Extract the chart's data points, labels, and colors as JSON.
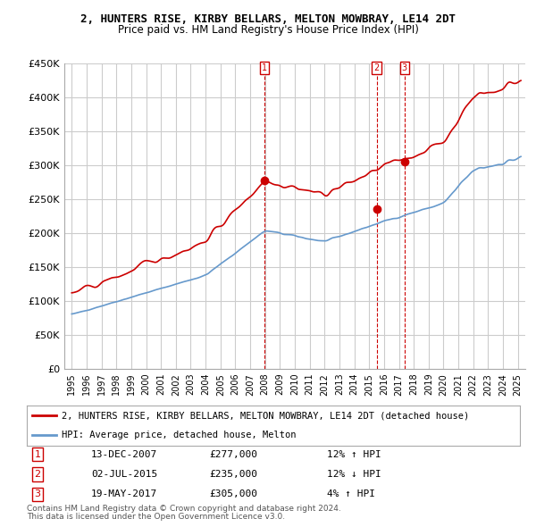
{
  "title": "2, HUNTERS RISE, KIRBY BELLARS, MELTON MOWBRAY, LE14 2DT",
  "subtitle": "Price paid vs. HM Land Registry's House Price Index (HPI)",
  "ylabel": "",
  "ylim": [
    0,
    450000
  ],
  "yticks": [
    0,
    50000,
    100000,
    150000,
    200000,
    250000,
    300000,
    350000,
    400000,
    450000
  ],
  "ytick_labels": [
    "£0",
    "£50K",
    "£100K",
    "£150K",
    "£200K",
    "£250K",
    "£300K",
    "£350K",
    "£400K",
    "£450K"
  ],
  "hpi_color": "#6699cc",
  "price_color": "#cc0000",
  "sale_color": "#cc0000",
  "vline_color": "#cc0000",
  "grid_color": "#cccccc",
  "bg_color": "#ffffff",
  "sales": [
    {
      "label": "1",
      "date_num": 2007.95,
      "price": 277000,
      "pct": "12%",
      "dir": "↑",
      "date_str": "13-DEC-2007"
    },
    {
      "label": "2",
      "date_num": 2015.5,
      "price": 235000,
      "pct": "12%",
      "dir": "↓",
      "date_str": "02-JUL-2015"
    },
    {
      "label": "3",
      "date_num": 2017.38,
      "price": 305000,
      "pct": "4%",
      "dir": "↑",
      "date_str": "19-MAY-2017"
    }
  ],
  "legend_line1": "2, HUNTERS RISE, KIRBY BELLARS, MELTON MOWBRAY, LE14 2DT (detached house)",
  "legend_line2": "HPI: Average price, detached house, Melton",
  "footnote1": "Contains HM Land Registry data © Crown copyright and database right 2024.",
  "footnote2": "This data is licensed under the Open Government Licence v3.0."
}
